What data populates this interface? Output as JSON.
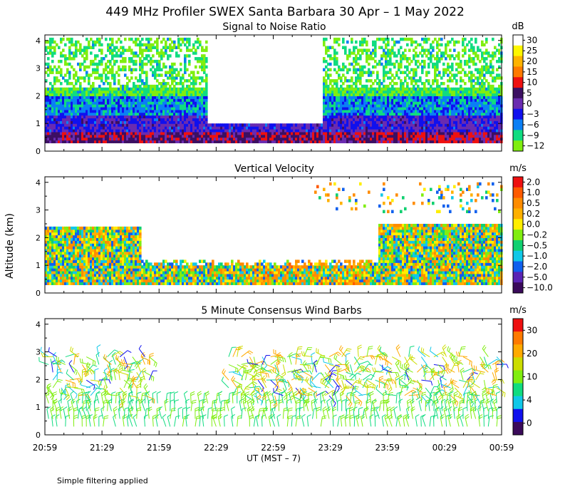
{
  "title": "449 MHz Profiler SWEX Santa Barbara 30 Apr –  1 May 2022",
  "ylabel": "Altitude (km)",
  "xlabel": "UT  (MST – 7)",
  "footnote": "Simple filtering applied",
  "x_ticks": [
    "20:59",
    "21:29",
    "21:59",
    "22:29",
    "22:59",
    "23:29",
    "23:59",
    "00:29",
    "00:59"
  ],
  "chart_data": [
    {
      "type": "heatmap",
      "title": "Signal to Noise Ratio",
      "colorbar_unit": "dB",
      "colorbar_ticks": [
        "30",
        "25",
        "20",
        "15",
        "10",
        "5",
        "0",
        "−3",
        "−6",
        "−9",
        "−12"
      ],
      "colorbar_colors": [
        "#ffffff",
        "#fff700",
        "#ffb300",
        "#ff7a00",
        "#ee1010",
        "#3c0f62",
        "#6a2bb0",
        "#1010ee",
        "#0a7ff5",
        "#10dc80",
        "#80ee10"
      ],
      "y_ticks": [
        "0",
        "1",
        "2",
        "3",
        "4"
      ],
      "ylim": [
        0,
        4.2
      ],
      "x_range": [
        "20:59",
        "00:59"
      ]
    },
    {
      "type": "heatmap",
      "title": "Vertical Velocity",
      "colorbar_unit": "m/s",
      "colorbar_ticks": [
        "2.0",
        "1.0",
        "0.5",
        "0.2",
        "0.0",
        "−0.2",
        "−0.5",
        "−1.0",
        "−2.0",
        "−5.0",
        "−10.0"
      ],
      "colorbar_colors": [
        "#ee1010",
        "#ff5a00",
        "#ff8c00",
        "#ffb000",
        "#ffee00",
        "#80ee10",
        "#10d070",
        "#10c8e8",
        "#1060ee",
        "#5a24b4",
        "#3a0a5a"
      ],
      "y_ticks": [
        "0",
        "1",
        "2",
        "3",
        "4"
      ],
      "ylim": [
        0,
        4.2
      ],
      "x_range": [
        "20:59",
        "00:59"
      ]
    },
    {
      "type": "wind_barbs",
      "title": "5 Minute Consensus Wind Barbs",
      "colorbar_unit": "m/s",
      "colorbar_ticks": [
        "30",
        "20",
        "10",
        "4",
        "0"
      ],
      "colorbar_colors": [
        "#ee1010",
        "#ff7a00",
        "#ffaa00",
        "#ccdd00",
        "#80ee10",
        "#10dc80",
        "#10c8e8",
        "#1010ee",
        "#3a0a5a"
      ],
      "y_ticks": [
        "0",
        "1",
        "2",
        "3",
        "4"
      ],
      "ylim": [
        0,
        4.2
      ],
      "x_range": [
        "20:59",
        "00:59"
      ]
    }
  ]
}
